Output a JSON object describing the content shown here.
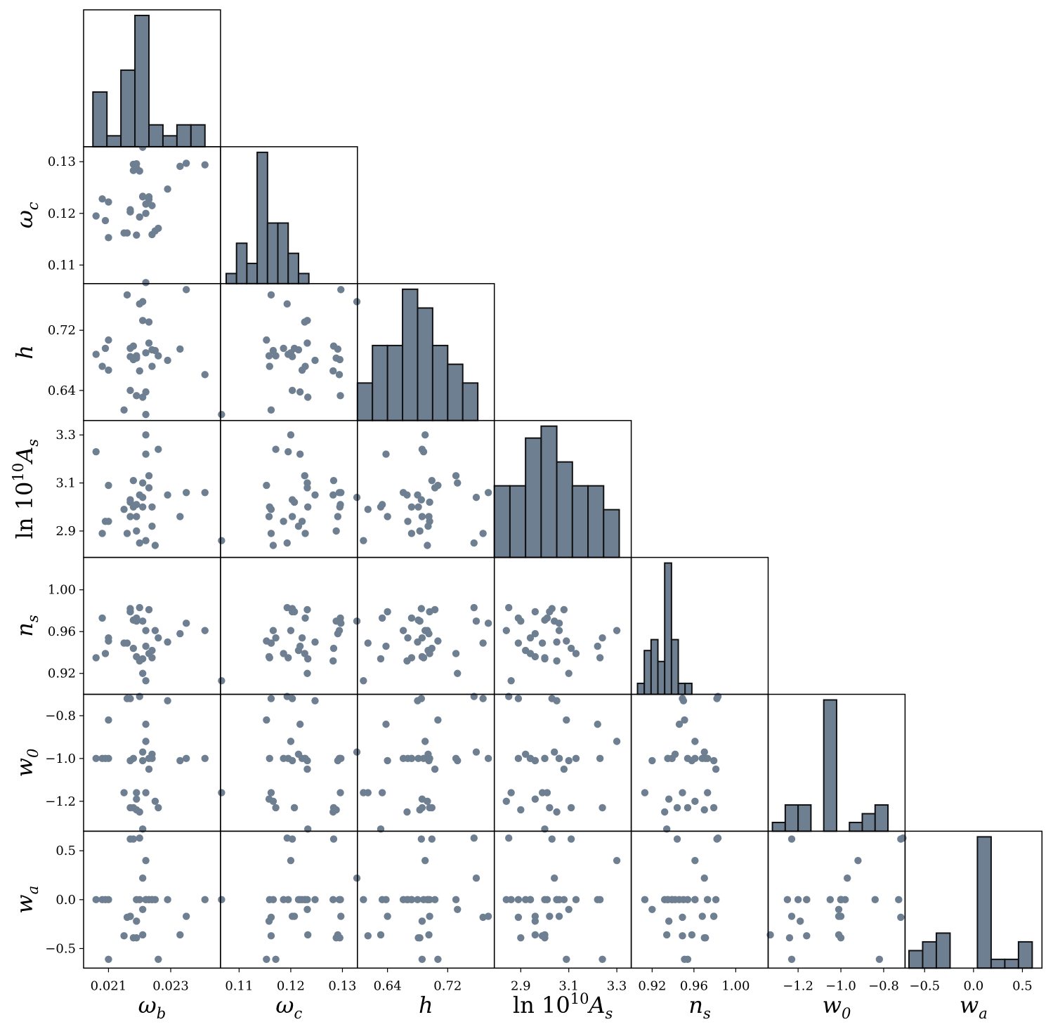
{
  "chart_data": {
    "type": "scatter",
    "params": [
      {
        "key": "omega_b",
        "label_main": "ω",
        "label_sub": "b",
        "range": [
          0.0202,
          0.0246
        ],
        "ticks": [
          0.021,
          0.023
        ],
        "tick_labels": [
          "0.021",
          "0.023"
        ]
      },
      {
        "key": "omega_c",
        "label_main": "ω",
        "label_sub": "c",
        "range": [
          0.1064,
          0.1329
        ],
        "ticks": [
          0.11,
          0.12,
          0.13
        ],
        "tick_labels": [
          "0.11",
          "0.12",
          "0.13"
        ]
      },
      {
        "key": "h",
        "label_main": "h",
        "label_sub": "",
        "range": [
          0.6,
          0.782
        ],
        "ticks": [
          0.64,
          0.72
        ],
        "tick_labels": [
          "0.64",
          "0.72"
        ]
      },
      {
        "key": "lnAs",
        "label_main": "ln 10",
        "label_sup": "10",
        "label_tail": "A",
        "label_sub": "s",
        "range": [
          2.79,
          3.36
        ],
        "ticks": [
          2.9,
          3.1,
          3.3
        ],
        "tick_labels": [
          "2.9",
          "3.1",
          "3.3"
        ]
      },
      {
        "key": "n_s",
        "label_main": "n",
        "label_sub": "s",
        "range": [
          0.9,
          1.031
        ],
        "ticks": [
          0.92,
          0.96,
          1.0
        ],
        "tick_labels": [
          "0.92",
          "0.96",
          "1.00"
        ]
      },
      {
        "key": "w_0",
        "label_main": "w",
        "label_sub": "0",
        "range": [
          -1.34,
          -0.7
        ],
        "ticks": [
          -1.2,
          -1.0,
          -0.8
        ],
        "tick_labels": [
          "−1.2",
          "−1.0",
          "−0.8"
        ]
      },
      {
        "key": "w_a",
        "label_main": "w",
        "label_sub": "a",
        "range": [
          -0.7,
          0.7
        ],
        "ticks": [
          -0.5,
          0.0,
          0.5
        ],
        "tick_labels": [
          "−0.5",
          "0.0",
          "0.5"
        ]
      }
    ],
    "y_tick_labels": {
      "omega_c": [
        "0.11",
        "0.12",
        "0.13"
      ],
      "h": [
        "0.64",
        "0.72"
      ],
      "lnAs": [
        "2.9",
        "3.1",
        "3.3"
      ],
      "n_s": [
        "0.92",
        "0.96",
        "1.00"
      ],
      "w_0": [
        "−1.2",
        "−1.0",
        "−0.8"
      ],
      "w_a": [
        "−0.5",
        "0.0",
        "0.5"
      ]
    },
    "histograms": [
      {
        "param": "omega_b",
        "bin_edges": [
          0.0205,
          0.02095,
          0.0214,
          0.02185,
          0.0223,
          0.02275,
          0.0232,
          0.02365,
          0.0241,
          0.02455
        ],
        "counts": [
          5,
          1,
          7,
          12,
          2,
          1,
          2,
          2,
          0
        ]
      },
      {
        "param": "omega_c",
        "bin_edges": [
          0.1075,
          0.1095,
          0.1115,
          0.1135,
          0.1155,
          0.1175,
          0.1195,
          0.1215,
          0.1235
        ],
        "counts": [
          1,
          4,
          2,
          13,
          6,
          6,
          3,
          1
        ]
      },
      {
        "param": "h",
        "bin_edges": [
          0.6,
          0.62,
          0.64,
          0.66,
          0.68,
          0.7,
          0.72,
          0.74,
          0.76,
          0.78
        ],
        "counts": [
          2,
          4,
          4,
          7,
          6,
          4,
          3,
          2,
          0
        ]
      },
      {
        "param": "lnAs",
        "bin_edges": [
          2.79,
          2.855,
          2.92,
          2.985,
          3.05,
          3.115,
          3.18,
          3.245,
          3.31,
          3.36
        ],
        "counts": [
          3,
          3,
          5,
          5.5,
          4,
          3,
          3,
          2,
          0
        ]
      },
      {
        "param": "n_s",
        "bin_edges": [
          0.906,
          0.9125,
          0.919,
          0.9255,
          0.932,
          0.9385,
          0.945,
          0.9515,
          0.958,
          0.9645,
          0.971
        ],
        "counts": [
          1,
          4,
          5,
          3,
          12,
          5,
          1,
          1,
          0,
          0
        ]
      },
      {
        "param": "w_0",
        "bin_edges": [
          -1.32,
          -1.26,
          -1.2,
          -1.14,
          -1.08,
          -1.02,
          -0.96,
          -0.9,
          -0.84,
          -0.78,
          -0.72
        ],
        "counts": [
          1,
          3,
          3,
          0,
          15,
          0,
          1,
          2,
          3,
          0
        ]
      },
      {
        "param": "w_a",
        "bin_edges": [
          -0.66,
          -0.52,
          -0.38,
          -0.24,
          -0.1,
          0.04,
          0.18,
          0.32,
          0.46,
          0.6
        ],
        "counts": [
          2,
          3,
          4,
          0,
          0,
          15,
          1,
          1,
          3
        ]
      }
    ],
    "samples": [
      {
        "omega_b": 0.0206,
        "omega_c": 0.1195,
        "h": 0.688,
        "lnAs": 3.23,
        "n_s": 0.935,
        "w_0": -1.0,
        "w_a": 0.0
      },
      {
        "omega_b": 0.0208,
        "omega_c": 0.1228,
        "h": 0.672,
        "lnAs": 2.89,
        "n_s": 0.973,
        "w_0": -1.0,
        "w_a": 0.0
      },
      {
        "omega_b": 0.0209,
        "omega_c": 0.1186,
        "h": 0.696,
        "lnAs": 2.94,
        "n_s": 0.939,
        "w_0": -1.0,
        "w_a": 0.0
      },
      {
        "omega_b": 0.021,
        "omega_c": 0.1153,
        "h": 0.707,
        "lnAs": 3.09,
        "n_s": 0.951,
        "w_0": -0.82,
        "w_a": -0.61
      },
      {
        "omega_b": 0.021,
        "omega_c": 0.1222,
        "h": 0.667,
        "lnAs": 2.94,
        "n_s": 0.954,
        "w_0": -1.0,
        "w_a": 0.0
      },
      {
        "omega_b": 0.0215,
        "omega_c": 0.1162,
        "h": 0.614,
        "lnAs": 2.99,
        "n_s": 0.949,
        "w_0": -1.16,
        "w_a": -0.37
      },
      {
        "omega_b": 0.0216,
        "omega_c": 0.1162,
        "h": 0.767,
        "lnAs": 2.89,
        "n_s": 0.949,
        "w_0": -0.72,
        "w_a": -0.18
      },
      {
        "omega_b": 0.0217,
        "omega_c": 0.1203,
        "h": 0.685,
        "lnAs": 3.03,
        "n_s": 0.982,
        "w_0": -0.72,
        "w_a": 0.62
      },
      {
        "omega_b": 0.0217,
        "omega_c": 0.1207,
        "h": 0.696,
        "lnAs": 3.02,
        "n_s": 0.979,
        "w_0": -1.23,
        "w_a": -0.17
      },
      {
        "omega_b": 0.0217,
        "omega_c": 0.1203,
        "h": 0.64,
        "lnAs": 2.96,
        "n_s": 0.979,
        "w_0": -1.01,
        "w_a": -0.17
      },
      {
        "omega_b": 0.0218,
        "omega_c": 0.1283,
        "h": 0.699,
        "lnAs": 3.11,
        "n_s": 0.944,
        "w_0": -1.23,
        "w_a": 0.62
      },
      {
        "omega_b": 0.0218,
        "omega_c": 0.1295,
        "h": 0.681,
        "lnAs": 3.0,
        "n_s": 0.971,
        "w_0": -1.0,
        "w_a": -0.39
      },
      {
        "omega_b": 0.0219,
        "omega_c": 0.1288,
        "h": 0.683,
        "lnAs": 2.9,
        "n_s": 0.97,
        "w_0": -1.24,
        "w_a": -0.39
      },
      {
        "omega_b": 0.0219,
        "omega_c": 0.1158,
        "h": 0.686,
        "lnAs": 2.96,
        "n_s": 0.936,
        "w_0": -1.19,
        "w_a": -0.22
      },
      {
        "omega_b": 0.0219,
        "omega_c": 0.1296,
        "h": 0.633,
        "lnAs": 3.01,
        "n_s": 0.973,
        "w_0": -1.16,
        "w_a": 0.0
      },
      {
        "omega_b": 0.022,
        "omega_c": 0.1282,
        "h": 0.666,
        "lnAs": 3.05,
        "n_s": 0.932,
        "w_0": -1.25,
        "w_a": 0.0
      },
      {
        "omega_b": 0.022,
        "omega_c": 0.1193,
        "h": 0.755,
        "lnAs": 2.85,
        "n_s": 0.983,
        "w_0": -0.71,
        "w_a": 0.63
      },
      {
        "omega_b": 0.0221,
        "omega_c": 0.1233,
        "h": 0.631,
        "lnAs": 3.0,
        "n_s": 0.934,
        "w_0": -1.33,
        "w_a": -0.36
      },
      {
        "omega_b": 0.0221,
        "omega_c": 0.1328,
        "h": 0.758,
        "lnAs": 3.04,
        "n_s": 0.97,
        "w_0": -0.97,
        "w_a": 0.22
      },
      {
        "omega_b": 0.0221,
        "omega_c": 0.1232,
        "h": 0.733,
        "lnAs": 3.1,
        "n_s": 0.92,
        "w_0": -1.01,
        "w_a": -0.1
      },
      {
        "omega_b": 0.0222,
        "omega_c": 0.12,
        "h": 0.69,
        "lnAs": 3.3,
        "n_s": 0.961,
        "w_0": -0.92,
        "w_a": 0.4
      },
      {
        "omega_b": 0.0222,
        "omega_c": 0.1218,
        "h": 0.638,
        "lnAs": 3.22,
        "n_s": 0.946,
        "w_0": -0.84,
        "w_a": 0.0
      },
      {
        "omega_b": 0.0222,
        "omega_c": 0.1066,
        "h": 0.608,
        "lnAs": 2.86,
        "n_s": 0.913,
        "w_0": -1.16,
        "w_a": 0.0
      },
      {
        "omega_b": 0.0223,
        "omega_c": 0.1232,
        "h": 0.703,
        "lnAs": 3.08,
        "n_s": 0.981,
        "w_0": -1.05,
        "w_a": 0.0
      },
      {
        "omega_b": 0.0223,
        "omega_c": 0.1227,
        "h": 0.731,
        "lnAs": 3.13,
        "n_s": 0.939,
        "w_0": -1.0,
        "w_a": 0.0
      },
      {
        "omega_b": 0.0224,
        "omega_c": 0.1215,
        "h": 0.694,
        "lnAs": 2.92,
        "n_s": 0.942,
        "w_0": -0.98,
        "w_a": 0.0
      },
      {
        "omega_b": 0.0224,
        "omega_c": 0.1159,
        "h": 0.672,
        "lnAs": 3.0,
        "n_s": 0.935,
        "w_0": -1.0,
        "w_a": 0.0
      },
      {
        "omega_b": 0.0225,
        "omega_c": 0.1166,
        "h": 0.693,
        "lnAs": 2.84,
        "n_s": 0.961,
        "w_0": -1.2,
        "w_a": 0.0
      },
      {
        "omega_b": 0.0226,
        "omega_c": 0.1171,
        "h": 0.686,
        "lnAs": 3.24,
        "n_s": 0.954,
        "w_0": -1.23,
        "w_a": -0.61
      },
      {
        "omega_b": 0.0229,
        "omega_c": 0.1247,
        "h": 0.68,
        "lnAs": 3.05,
        "n_s": 0.95,
        "w_0": -0.73,
        "w_a": 0.0
      },
      {
        "omega_b": 0.0233,
        "omega_c": 0.1291,
        "h": 0.695,
        "lnAs": 2.96,
        "n_s": 0.958,
        "w_0": -1.01,
        "w_a": -0.36
      },
      {
        "omega_b": 0.0235,
        "omega_c": 0.1297,
        "h": 0.774,
        "lnAs": 3.06,
        "n_s": 0.968,
        "w_0": -1.0,
        "w_a": -0.17
      },
      {
        "omega_b": 0.0241,
        "omega_c": 0.1294,
        "h": 0.661,
        "lnAs": 3.06,
        "n_s": 0.961,
        "w_0": -1.0,
        "w_a": 0.0
      }
    ]
  }
}
